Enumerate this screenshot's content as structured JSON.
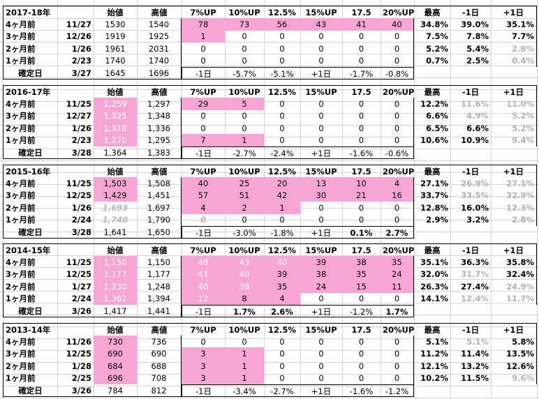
{
  "blocks": [
    {
      "header": [
        "2017-18年",
        "始値",
        "高値",
        "7%UP",
        "10%UP",
        "12.5%",
        "15%UP",
        "17.5",
        "20%UP",
        "最高",
        "-1日",
        "+1日"
      ],
      "rows": [
        [
          "4ヶ月前",
          "11/27",
          "1530",
          "1540",
          "78",
          "73",
          "56",
          "43",
          "41",
          "40",
          "34.8%",
          "39.0%",
          "35.1%"
        ],
        [
          "3ヶ月前",
          "12/26",
          "1919",
          "1925",
          "1",
          "0",
          "0",
          "0",
          "0",
          "0",
          "7.5%",
          "7.8%",
          "7.7%"
        ],
        [
          "2ヶ月前",
          "1/26",
          "1961",
          "2031",
          "0",
          "0",
          "0",
          "0",
          "0",
          "0",
          "5.2%",
          "5.4%",
          "2.8%"
        ],
        [
          "1ヶ月前",
          "2/23",
          "1740",
          "1740",
          "0",
          "0",
          "0",
          "0",
          "0",
          "0",
          "0.7%",
          "2.5%",
          "0.4%"
        ]
      ],
      "confirm": [
        "確定日",
        "3/27",
        "1645",
        "1696",
        "-1日",
        "-5.7%",
        "-5.1%",
        "+1日",
        "-1.7%",
        "-0.8%"
      ]
    },
    {
      "header": [
        "2016-17年",
        "始値",
        "高値",
        "7%UP",
        "10%UP",
        "12.5%",
        "15%UP",
        "17.5",
        "20%UP",
        "最高",
        "-1日",
        "+1日"
      ],
      "rows": [
        [
          "4ヶ月前",
          "11/25",
          "1,259",
          "1,297",
          "29",
          "5",
          "0",
          "0",
          "0",
          "0",
          "12.2%",
          "11.6%",
          "11.0%"
        ],
        [
          "3ヶ月前",
          "12/27",
          "1,325",
          "1,348",
          "0",
          "0",
          "0",
          "0",
          "0",
          "0",
          "6.6%",
          "4.9%",
          "5.2%"
        ],
        [
          "2ヶ月前",
          "1/26",
          "1,318",
          "1,336",
          "0",
          "0",
          "0",
          "0",
          "0",
          "0",
          "6.5%",
          "6.6%",
          "5.2%"
        ],
        [
          "1ヶ月前",
          "2/23",
          "1,270",
          "1,295",
          "7",
          "1",
          "0",
          "0",
          "0",
          "0",
          "10.6%",
          "10.9%",
          "9.4%"
        ]
      ],
      "confirm": [
        "確定日",
        "3/28",
        "1,364",
        "1,383",
        "-1日",
        "-2.7%",
        "-2.4%",
        "+1日",
        "-1.6%",
        "-0.6%"
      ]
    },
    {
      "header": [
        "2015-16年",
        "始値",
        "高値",
        "7%UP",
        "10%UP",
        "12.5%",
        "15%UP",
        "17.5",
        "20%UP",
        "最高",
        "-1日",
        "+1日"
      ],
      "rows": [
        [
          "4ヶ月前",
          "11/25",
          "1,503",
          "1,508",
          "40",
          "25",
          "20",
          "13",
          "10",
          "4",
          "27.1%",
          "26.9%",
          "27.1%"
        ],
        [
          "3ヶ月前",
          "12/25",
          "1,429",
          "1,451",
          "57",
          "51",
          "42",
          "30",
          "21",
          "16",
          "33.7%",
          "33.5%",
          "32.9%"
        ],
        [
          "2ヶ月前",
          "1/26",
          "1,693",
          "1,697",
          "4",
          "2",
          "1",
          "0",
          "0",
          "0",
          "12.8%",
          "16.0%",
          "12.3%"
        ],
        [
          "1ヶ月前",
          "2/24",
          "1,740",
          "1,790",
          "0",
          "0",
          "0",
          "0",
          "0",
          "0",
          "2.9%",
          "3.2%",
          "2.8%"
        ]
      ],
      "confirm": [
        "確定日",
        "3/28",
        "1,641",
        "1,650",
        "-1日",
        "-3.0%",
        "-1.8%",
        "+1日",
        "0.1%",
        "2.7%"
      ]
    },
    {
      "header": [
        "2014-15年",
        "始値",
        "高値",
        "7%UP",
        "10%UP",
        "12.5%",
        "15%UP",
        "17.5",
        "20%UP",
        "最高",
        "-1日",
        "+1日"
      ],
      "rows": [
        [
          "4ヶ月前",
          "11/25",
          "1,150",
          "1,150",
          "48",
          "43",
          "40",
          "39",
          "38",
          "35",
          "35.1%",
          "36.3%",
          "35.8%"
        ],
        [
          "3ヶ月前",
          "12/25",
          "1,177",
          "1,177",
          "41",
          "40",
          "39",
          "38",
          "35",
          "24",
          "32.0%",
          "31.7%",
          "32.4%"
        ],
        [
          "2ヶ月前",
          "1/27",
          "1,230",
          "1,248",
          "40",
          "38",
          "35",
          "24",
          "15",
          "11",
          "26.3%",
          "27.4%",
          "24.9%"
        ],
        [
          "1ヶ月前",
          "2/24",
          "1,362",
          "1,394",
          "12",
          "8",
          "4",
          "0",
          "0",
          "0",
          "14.1%",
          "12.4%",
          "11.7%"
        ]
      ],
      "confirm": [
        "確定日",
        "3/26",
        "1,417",
        "1,441",
        "-1日",
        "1.7%",
        "2.6%",
        "+1日",
        "-1.2%",
        "1.7%"
      ]
    },
    {
      "header": [
        "2013-14年",
        "始値",
        "高値",
        "7%UP",
        "10%UP",
        "12.5%",
        "15%UP",
        "17.5",
        "20%UP",
        "最高",
        "-1日",
        "+1日"
      ],
      "rows": [
        [
          "4ヶ月前",
          "11/26",
          "730",
          "736",
          "0",
          "0",
          "0",
          "0",
          "0",
          "0",
          "5.1%",
          "5.1%",
          "5.8%"
        ],
        [
          "3ヶ月前",
          "12/25",
          "690",
          "690",
          "3",
          "1",
          "0",
          "0",
          "0",
          "0",
          "11.2%",
          "11.4%",
          "13.5%"
        ],
        [
          "2ヶ月前",
          "1/28",
          "684",
          "688",
          "3",
          "1",
          "0",
          "0",
          "0",
          "0",
          "12.1%",
          "13.2%",
          "12.6%"
        ],
        [
          "1ヶ月前",
          "2/25",
          "696",
          "708",
          "3",
          "1",
          "0",
          "0",
          "0",
          "0",
          "10.2%",
          "11.5%",
          "9.6%"
        ]
      ],
      "confirm": [
        "確定日",
        "3/26",
        "784",
        "812",
        "-1日",
        "-3.4%",
        "-2.7%",
        "+1日",
        "-1.6%",
        "-1.2%"
      ]
    }
  ],
  "styles": {
    "pink_fill": "#f9a6d5",
    "gray_text": "#b3b3b3",
    "grid_line": "#d4d4d4"
  }
}
